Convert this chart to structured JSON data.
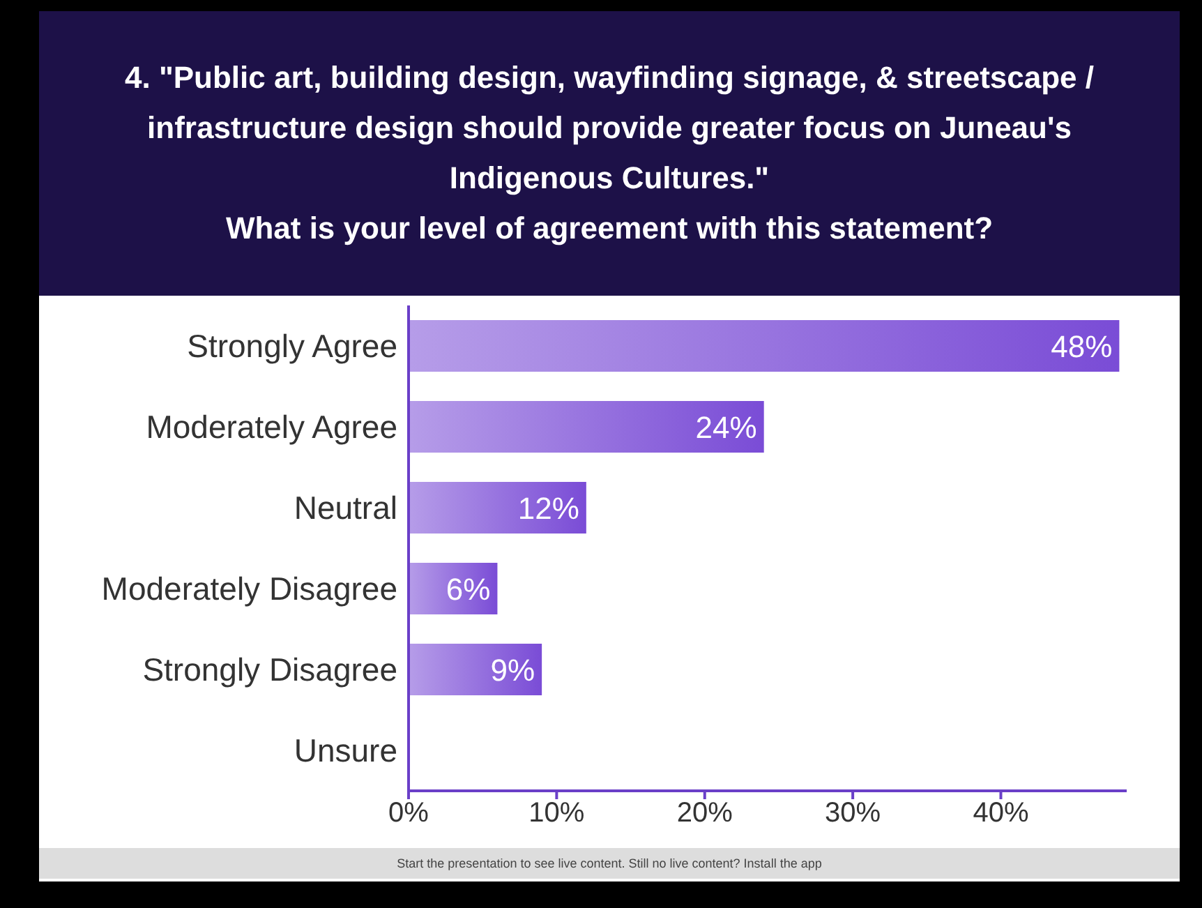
{
  "chart_data": {
    "type": "bar",
    "orientation": "horizontal",
    "title": "4. \"Public art, building design, wayfinding signage, & streetscape / infrastructure design should provide greater focus on Juneau's Indigenous Cultures.\"",
    "subtitle": "What is your level of agreement with this statement?",
    "categories": [
      "Strongly Agree",
      "Moderately Agree",
      "Neutral",
      "Moderately Disagree",
      "Strongly Disagree",
      "Unsure"
    ],
    "values": [
      48,
      24,
      12,
      6,
      9,
      0
    ],
    "value_labels": [
      "48%",
      "24%",
      "12%",
      "6%",
      "9%",
      null
    ],
    "color": "#7a4cd6",
    "xlim": [
      0,
      48.5
    ],
    "xticks": [
      {
        "value": 0,
        "label": "0%"
      },
      {
        "value": 10,
        "label": "10%"
      },
      {
        "value": 20,
        "label": "20%"
      },
      {
        "value": 30,
        "label": "30%"
      },
      {
        "value": 40,
        "label": "40%"
      }
    ],
    "grid": false,
    "annotations": [
      "Start the presentation to see live content. Still no live content? Install the app"
    ]
  }
}
